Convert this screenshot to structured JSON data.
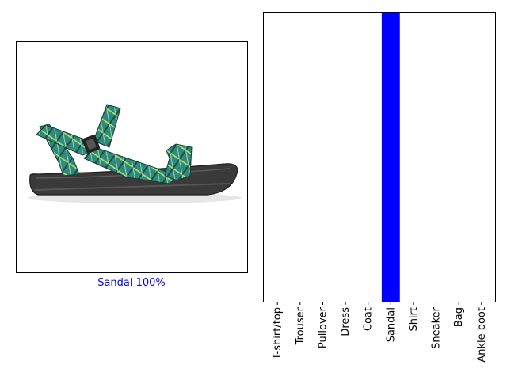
{
  "image_panel": {
    "caption": "Sandal 100%",
    "caption_color": "#0000ff",
    "subject": "sandal"
  },
  "chart_data": {
    "type": "bar",
    "categories": [
      "T-shirt/top",
      "Trouser",
      "Pullover",
      "Dress",
      "Coat",
      "Sandal",
      "Shirt",
      "Sneaker",
      "Bag",
      "Ankle boot"
    ],
    "values": [
      0,
      0,
      0,
      0,
      0,
      1,
      0,
      0,
      0,
      0
    ],
    "bar_colors": [
      "#777777",
      "#777777",
      "#777777",
      "#777777",
      "#777777",
      "#0000ff",
      "#777777",
      "#777777",
      "#777777",
      "#777777"
    ],
    "ylim": [
      0,
      1
    ],
    "grid": false,
    "title": "",
    "xlabel": "",
    "ylabel": ""
  }
}
